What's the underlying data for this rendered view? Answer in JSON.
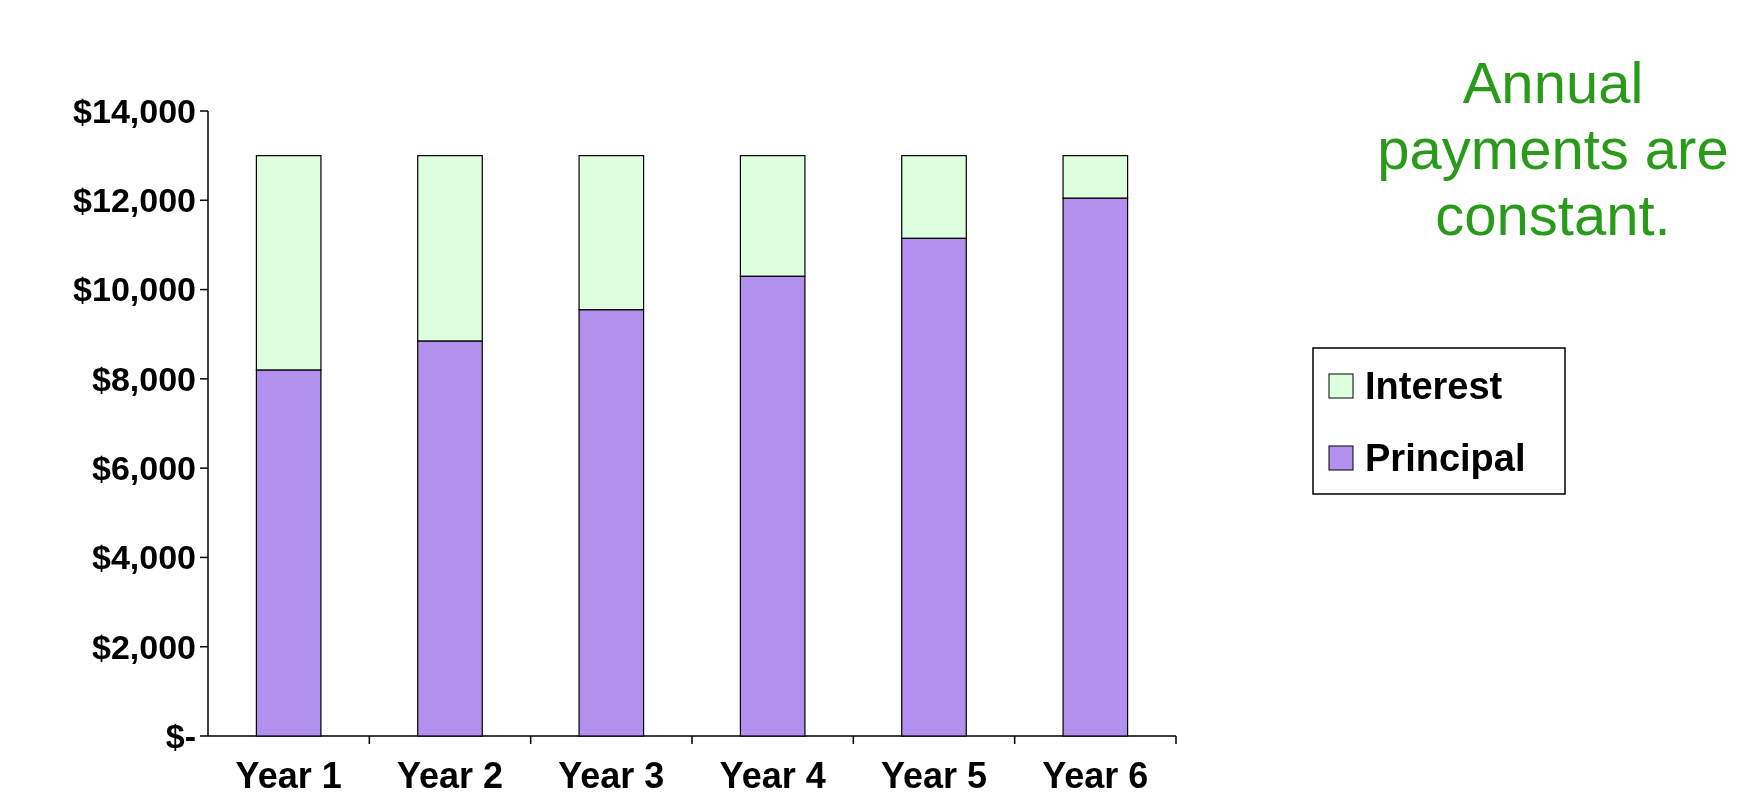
{
  "chart_data": {
    "type": "bar",
    "stacked": true,
    "categories": [
      "Year 1",
      "Year 2",
      "Year 3",
      "Year 4",
      "Year 5",
      "Year 6"
    ],
    "series": [
      {
        "name": "Principal",
        "color": "#b190ee",
        "values": [
          8200,
          8850,
          9550,
          10300,
          11150,
          12050
        ]
      },
      {
        "name": "Interest",
        "color": "#ddffdd",
        "values": [
          4800,
          4150,
          3450,
          2700,
          1850,
          950
        ]
      }
    ],
    "ylim": [
      0,
      14000
    ],
    "yticks": [
      {
        "value": 0,
        "label": "$-"
      },
      {
        "value": 2000,
        "label": "$2,000"
      },
      {
        "value": 4000,
        "label": "$4,000"
      },
      {
        "value": 6000,
        "label": "$6,000"
      },
      {
        "value": 8000,
        "label": "$8,000"
      },
      {
        "value": 10000,
        "label": "$10,000"
      },
      {
        "value": 12000,
        "label": "$12,000"
      },
      {
        "value": 14000,
        "label": "$14,000"
      }
    ],
    "legend": "right",
    "annotations": [
      "Annual payments are constant."
    ]
  }
}
